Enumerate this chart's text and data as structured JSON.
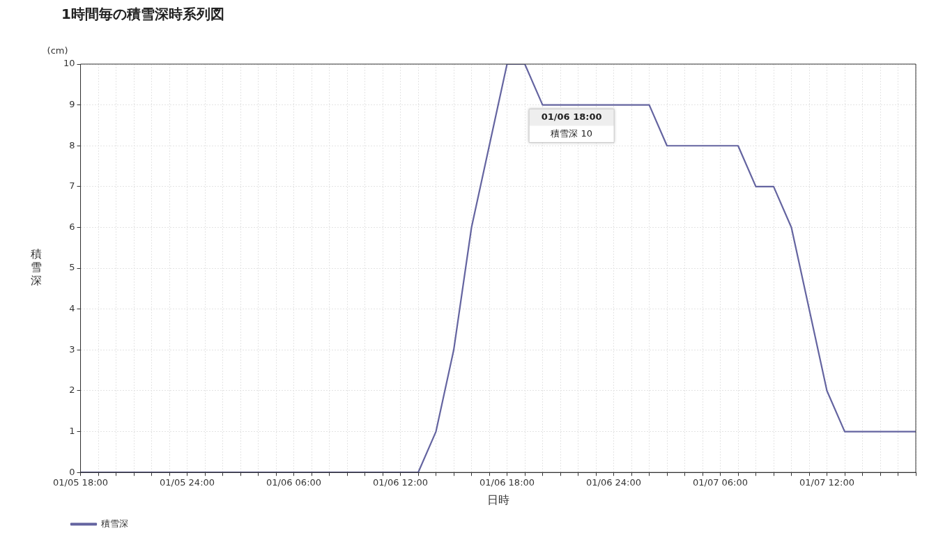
{
  "chart_data": {
    "type": "line",
    "title": "1時間毎の積雪深時系列図",
    "xlabel": "日時",
    "ylabel": "積雪深",
    "categories": [
      "01/05 18:00",
      null,
      null,
      null,
      null,
      null,
      "01/05 24:00",
      null,
      null,
      null,
      null,
      null,
      "01/06 06:00",
      null,
      null,
      null,
      null,
      null,
      "01/06 12:00",
      null,
      null,
      null,
      null,
      null,
      "01/06 18:00",
      null,
      null,
      null,
      null,
      null,
      "01/06 24:00",
      null,
      null,
      null,
      null,
      null,
      "01/07 06:00",
      null,
      null,
      null,
      null,
      null,
      "01/07 12:00",
      null,
      null,
      null,
      null,
      null
    ],
    "series": [
      {
        "name": "積雪深",
        "color": "#6464a0",
        "values": [
          0,
          0,
          0,
          0,
          0,
          0,
          0,
          0,
          0,
          0,
          0,
          0,
          0,
          0,
          0,
          0,
          0,
          0,
          0,
          0,
          1,
          3,
          6,
          8,
          10,
          10,
          9,
          9,
          9,
          9,
          9,
          9,
          9,
          8,
          8,
          8,
          8,
          8,
          7,
          7,
          6,
          4,
          2,
          1,
          1,
          1,
          1,
          1
        ]
      }
    ],
    "ylim": [
      0,
      10
    ],
    "yticks": [
      0,
      1,
      2,
      3,
      4,
      5,
      6,
      7,
      8,
      9,
      10
    ],
    "annotations": [
      "(cm)",
      "01/06 18:00\n積雪深 10"
    ],
    "grid": true,
    "legend": "bottom left",
    "marker": "none",
    "line_style": "solid"
  }
}
